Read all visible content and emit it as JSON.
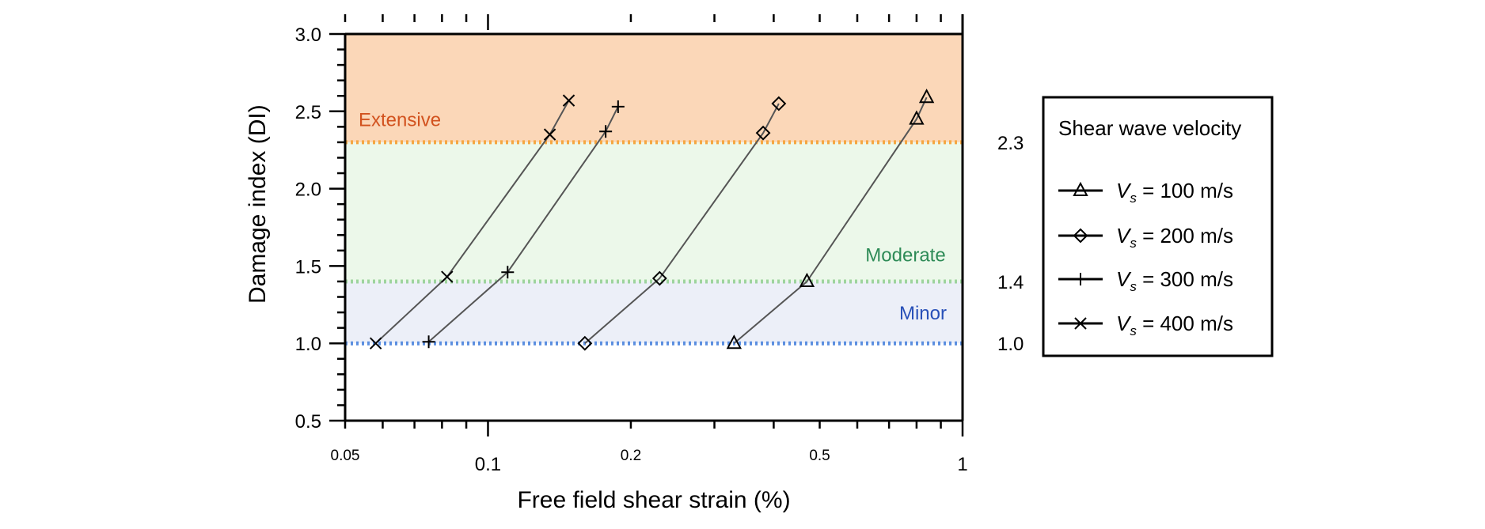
{
  "chart_data": {
    "type": "line",
    "title": "",
    "xlabel": "Free field shear strain (%)",
    "ylabel": "Damage index (DI)",
    "xscale": "log",
    "xlim": [
      0.05,
      1
    ],
    "ylim": [
      0.5,
      3.0
    ],
    "x_ticks": [
      {
        "value": 0.05,
        "label": "0.05"
      },
      {
        "value": 0.1,
        "label": "0.1"
      },
      {
        "value": 0.2,
        "label": "0.2"
      },
      {
        "value": 0.5,
        "label": "0.5"
      },
      {
        "value": 1,
        "label": "1"
      }
    ],
    "y_ticks": [
      {
        "value": 0.5,
        "label": "0.5"
      },
      {
        "value": 1.0,
        "label": "1.0"
      },
      {
        "value": 1.5,
        "label": "1.5"
      },
      {
        "value": 2.0,
        "label": "2.0"
      },
      {
        "value": 2.5,
        "label": "2.5"
      },
      {
        "value": 3.0,
        "label": "3.0"
      }
    ],
    "thresholds": [
      {
        "value": 1.0,
        "label": "1.0",
        "zone": "Minor",
        "color": "#5b8fe0",
        "label_color": "#2850b8"
      },
      {
        "value": 1.4,
        "label": "1.4",
        "zone": "Moderate",
        "color": "#9ed49e",
        "label_color": "#2e8b57"
      },
      {
        "value": 2.3,
        "label": "2.3",
        "zone": "Extensive",
        "color": "#f5a742",
        "label_color": "#d2521e"
      }
    ],
    "zones": [
      {
        "name": "minor-zone",
        "from": 1.0,
        "to": 1.4,
        "color": "#eceff8"
      },
      {
        "name": "moderate-zone",
        "from": 1.4,
        "to": 2.3,
        "color": "#ecf8ea"
      },
      {
        "name": "extensive-zone",
        "from": 2.3,
        "to": 3.0,
        "color": "#fbd7b8"
      }
    ],
    "legend": {
      "title": "Shear wave velocity",
      "position": "right"
    },
    "series": [
      {
        "name": "Vs = 100 m/s",
        "var": "V",
        "sub": "s",
        "label": " = 100 m/s",
        "marker": "triangle",
        "points": [
          [
            0.33,
            1.0
          ],
          [
            0.47,
            1.4
          ],
          [
            0.8,
            2.45
          ],
          [
            0.84,
            2.59
          ]
        ]
      },
      {
        "name": "Vs = 200 m/s",
        "var": "V",
        "sub": "s",
        "label": " = 200 m/s",
        "marker": "diamond",
        "points": [
          [
            0.16,
            1.0
          ],
          [
            0.23,
            1.42
          ],
          [
            0.38,
            2.36
          ],
          [
            0.41,
            2.55
          ]
        ]
      },
      {
        "name": "Vs = 300 m/s",
        "var": "V",
        "sub": "s",
        "label": " = 300 m/s",
        "marker": "plus",
        "points": [
          [
            0.075,
            1.01
          ],
          [
            0.11,
            1.46
          ],
          [
            0.177,
            2.37
          ],
          [
            0.188,
            2.53
          ]
        ]
      },
      {
        "name": "Vs = 400 m/s",
        "var": "V",
        "sub": "s",
        "label": " = 400 m/s",
        "marker": "x",
        "points": [
          [
            0.058,
            1.0
          ],
          [
            0.082,
            1.43
          ],
          [
            0.135,
            2.35
          ],
          [
            0.148,
            2.57
          ]
        ]
      }
    ]
  }
}
